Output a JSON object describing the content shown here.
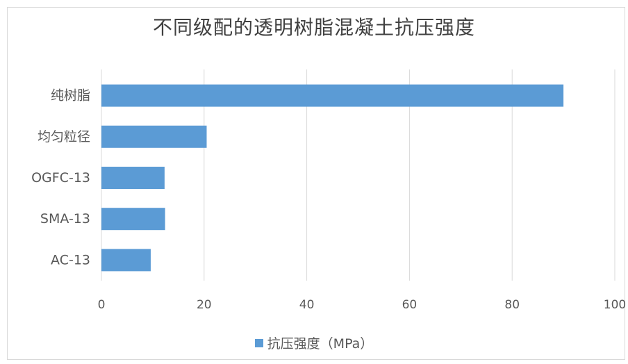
{
  "chart_data": {
    "type": "bar",
    "orientation": "horizontal",
    "title": "不同级配的透明树脂混凝土抗压强度",
    "categories": [
      "纯树脂",
      "均匀粒径",
      "OGFC-13",
      "SMA-13",
      "AC-13"
    ],
    "series": [
      {
        "name": "抗压强度（MPa）",
        "values": [
          90,
          20.5,
          12.3,
          12.4,
          9.6
        ],
        "color": "#5b9bd5"
      }
    ],
    "xlim": [
      0,
      100
    ],
    "xticks": [
      "0",
      "20",
      "40",
      "60",
      "80",
      "100"
    ],
    "grid": true,
    "legend_position": "bottom"
  }
}
